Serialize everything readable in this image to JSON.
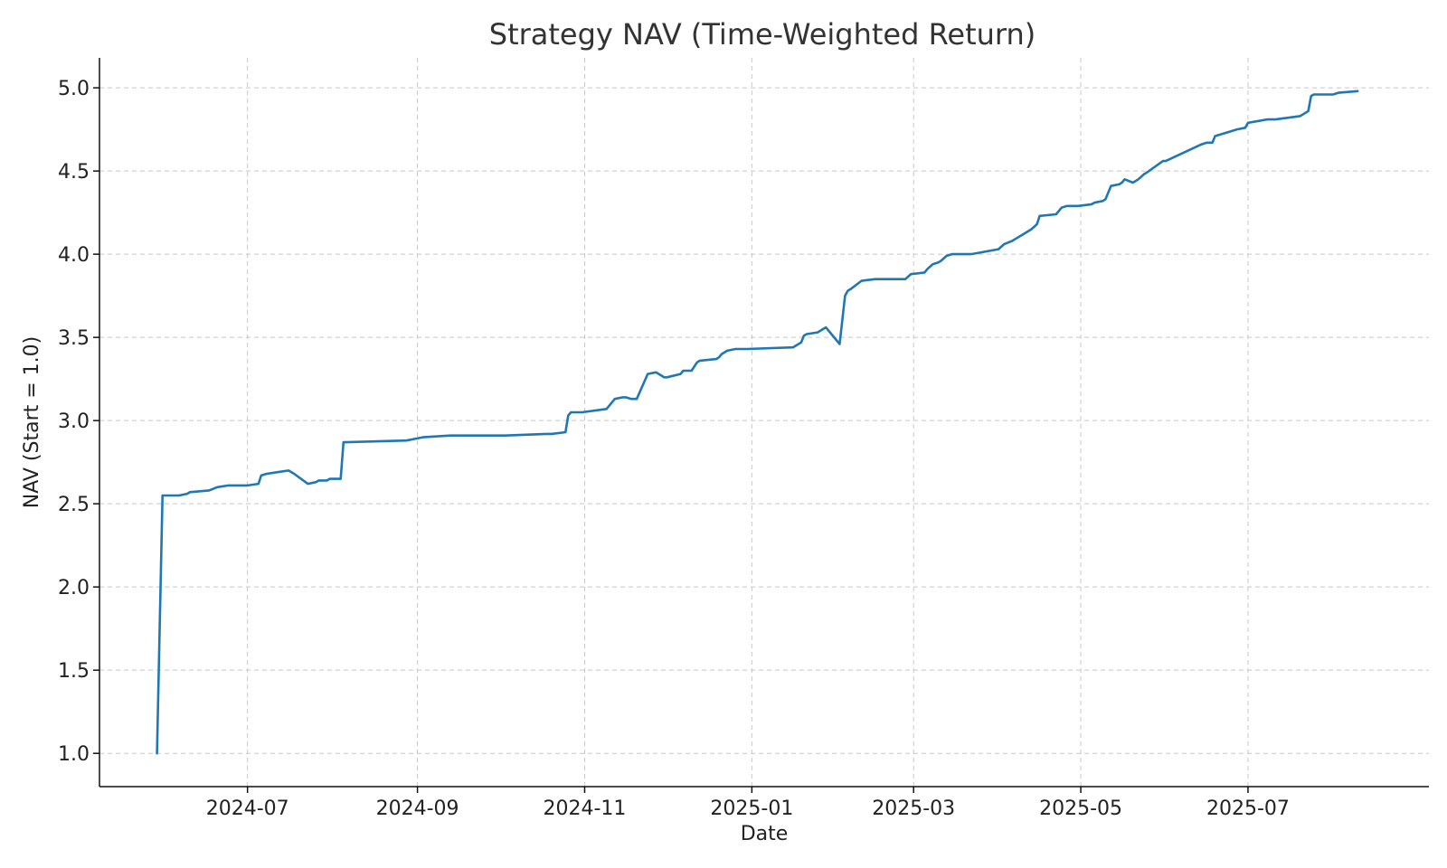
{
  "chart_data": {
    "type": "line",
    "title": "Strategy NAV (Time-Weighted Return)",
    "xlabel": "Date",
    "ylabel": "NAV (Start = 1.0)",
    "xlim": [
      "2024-05-08",
      "2025-09-05"
    ],
    "ylim": [
      0.8,
      5.18
    ],
    "x_ticks": [
      "2024-07-01",
      "2024-09-01",
      "2024-11-01",
      "2025-01-01",
      "2025-03-01",
      "2025-05-01",
      "2025-07-01"
    ],
    "x_tick_labels": [
      "2024-07",
      "2024-09",
      "2024-11",
      "2025-01",
      "2025-03",
      "2025-05",
      "2025-07"
    ],
    "y_ticks": [
      1.0,
      1.5,
      2.0,
      2.5,
      3.0,
      3.5,
      4.0,
      4.5,
      5.0
    ],
    "y_tick_labels": [
      "1.0",
      "1.5",
      "2.0",
      "2.5",
      "3.0",
      "3.5",
      "4.0",
      "4.5",
      "5.0"
    ],
    "grid": true,
    "color": "#1f77b4",
    "series": [
      {
        "x": [
          "2024-05-29",
          "2024-05-31",
          "2024-06-02",
          "2024-06-06",
          "2024-06-09",
          "2024-06-10",
          "2024-06-17",
          "2024-06-20",
          "2024-06-24",
          "2024-07-01",
          "2024-07-05",
          "2024-07-06",
          "2024-07-08",
          "2024-07-12",
          "2024-07-16",
          "2024-07-18",
          "2024-07-23",
          "2024-07-26",
          "2024-07-27",
          "2024-07-30",
          "2024-07-31",
          "2024-08-04",
          "2024-08-05",
          "2024-08-06",
          "2024-08-28",
          "2024-09-03",
          "2024-09-13",
          "2024-09-18",
          "2024-09-26",
          "2024-10-03",
          "2024-10-18",
          "2024-10-20",
          "2024-10-25",
          "2024-10-26",
          "2024-10-27",
          "2024-10-31",
          "2024-11-09",
          "2024-11-12",
          "2024-11-15",
          "2024-11-16",
          "2024-11-18",
          "2024-11-19",
          "2024-11-20",
          "2024-11-24",
          "2024-11-27",
          "2024-11-30",
          "2024-12-01",
          "2024-12-06",
          "2024-12-07",
          "2024-12-10",
          "2024-12-12",
          "2024-12-13",
          "2024-12-19",
          "2024-12-20",
          "2024-12-21",
          "2024-12-23",
          "2024-12-26",
          "2024-12-29",
          "2024-12-30",
          "2025-01-16",
          "2025-01-19",
          "2025-01-20",
          "2025-01-21",
          "2025-01-25",
          "2025-01-27",
          "2025-01-28",
          "2025-02-02",
          "2025-02-04",
          "2025-02-05",
          "2025-02-06",
          "2025-02-10",
          "2025-02-15",
          "2025-02-26",
          "2025-02-28",
          "2025-03-05",
          "2025-03-06",
          "2025-03-08",
          "2025-03-10",
          "2025-03-11",
          "2025-03-13",
          "2025-03-15",
          "2025-03-22",
          "2025-04-01",
          "2025-04-03",
          "2025-04-06",
          "2025-04-08",
          "2025-04-10",
          "2025-04-13",
          "2025-04-15",
          "2025-04-16",
          "2025-04-22",
          "2025-04-24",
          "2025-04-26",
          "2025-04-30",
          "2025-05-05",
          "2025-05-06",
          "2025-05-09",
          "2025-05-10",
          "2025-05-12",
          "2025-05-15",
          "2025-05-16",
          "2025-05-17",
          "2025-05-20",
          "2025-05-22",
          "2025-05-24",
          "2025-05-25",
          "2025-05-31",
          "2025-06-01",
          "2025-06-14",
          "2025-06-16",
          "2025-06-18",
          "2025-06-19",
          "2025-06-25",
          "2025-06-27",
          "2025-06-30",
          "2025-07-01",
          "2025-07-08",
          "2025-07-11",
          "2025-07-20",
          "2025-07-21",
          "2025-07-22",
          "2025-07-23",
          "2025-07-24",
          "2025-07-25",
          "2025-08-01",
          "2025-08-03",
          "2025-08-10"
        ],
        "y": [
          1.0,
          2.55,
          2.55,
          2.55,
          2.56,
          2.57,
          2.58,
          2.6,
          2.61,
          2.61,
          2.62,
          2.67,
          2.68,
          2.69,
          2.7,
          2.68,
          2.62,
          2.63,
          2.64,
          2.64,
          2.65,
          2.65,
          2.87,
          2.87,
          2.88,
          2.9,
          2.91,
          2.91,
          2.91,
          2.91,
          2.92,
          2.92,
          2.93,
          3.03,
          3.05,
          3.05,
          3.07,
          3.13,
          3.14,
          3.14,
          3.13,
          3.13,
          3.13,
          3.28,
          3.29,
          3.26,
          3.26,
          3.28,
          3.3,
          3.3,
          3.35,
          3.36,
          3.37,
          3.38,
          3.4,
          3.42,
          3.43,
          3.43,
          3.43,
          3.44,
          3.47,
          3.51,
          3.52,
          3.53,
          3.55,
          3.56,
          3.46,
          3.75,
          3.78,
          3.79,
          3.84,
          3.85,
          3.85,
          3.88,
          3.89,
          3.91,
          3.94,
          3.95,
          3.96,
          3.99,
          4.0,
          4.0,
          4.03,
          4.06,
          4.08,
          4.1,
          4.12,
          4.15,
          4.18,
          4.23,
          4.24,
          4.28,
          4.29,
          4.29,
          4.3,
          4.31,
          4.32,
          4.33,
          4.41,
          4.42,
          4.43,
          4.45,
          4.43,
          4.45,
          4.48,
          4.49,
          4.56,
          4.56,
          4.66,
          4.67,
          4.67,
          4.71,
          4.74,
          4.75,
          4.76,
          4.79,
          4.81,
          4.81,
          4.83,
          4.84,
          4.85,
          4.86,
          4.95,
          4.96,
          4.96,
          4.97,
          4.98
        ]
      }
    ]
  }
}
